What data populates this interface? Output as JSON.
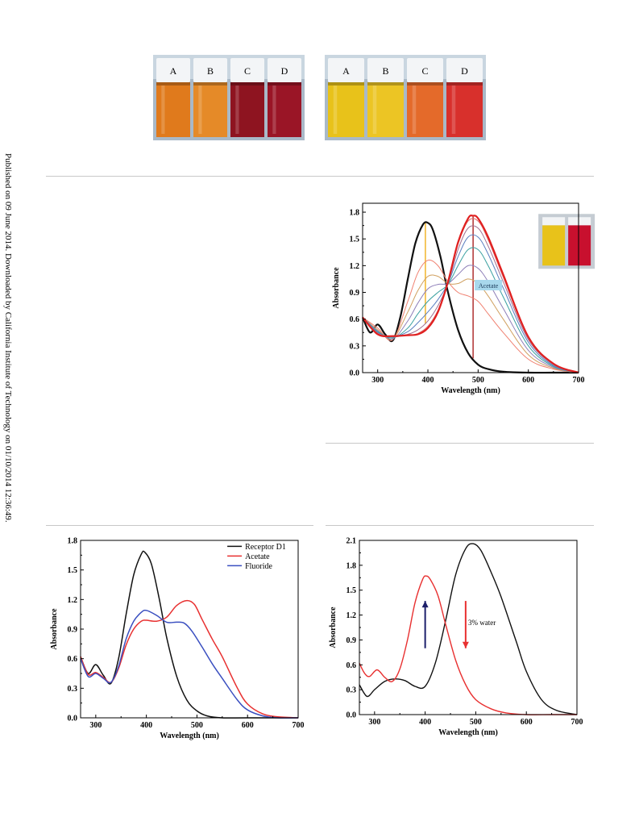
{
  "side_note": "Published on 09 June 2014. Downloaded by California Institute of Technology on 01/10/2014 12:36:49.",
  "vials": {
    "left": {
      "labels": [
        "A",
        "B",
        "C",
        "D"
      ],
      "colors": [
        "#e07a1c",
        "#e58a28",
        "#8e1420",
        "#9a1526"
      ]
    },
    "right": {
      "labels": [
        "A",
        "B",
        "C",
        "D"
      ],
      "colors": [
        "#e8c21a",
        "#ecc524",
        "#e46a2a",
        "#d8302c"
      ]
    }
  },
  "chart_data": [
    {
      "id": "titration",
      "type": "line",
      "xlabel": "Wavelength (nm)",
      "ylabel": "Absorbance",
      "xlim": [
        270,
        700
      ],
      "ylim": [
        0.0,
        1.9
      ],
      "xticks": [
        300,
        400,
        500,
        600,
        700
      ],
      "yticks": [
        0.0,
        0.3,
        0.6,
        0.9,
        1.2,
        1.5,
        1.8
      ],
      "annotations": [
        {
          "text": "Acetate"
        }
      ],
      "inset_colors": [
        "#e8c21a",
        "#c8102e"
      ],
      "marker_lines": [
        {
          "x": 395,
          "y_from": 0.55,
          "y_to": 1.68,
          "color": "#f2b42a"
        },
        {
          "x": 490,
          "y_from": 0.16,
          "y_to": 1.75,
          "color": "#b03030"
        }
      ],
      "series": [
        {
          "color": "#111111",
          "width": 2.2,
          "x": [
            270,
            285,
            300,
            315,
            330,
            345,
            360,
            375,
            390,
            400,
            410,
            425,
            440,
            460,
            480,
            500,
            520,
            550,
            600,
            650,
            700
          ],
          "y": [
            0.62,
            0.45,
            0.54,
            0.43,
            0.36,
            0.62,
            1.05,
            1.45,
            1.66,
            1.68,
            1.6,
            1.3,
            0.9,
            0.48,
            0.22,
            0.09,
            0.04,
            0.01,
            0.0,
            0.0,
            0.0
          ]
        },
        {
          "color": "#f08070",
          "width": 1,
          "x": [
            270,
            300,
            330,
            360,
            380,
            400,
            420,
            440,
            460,
            480,
            500,
            520,
            550,
            600,
            650,
            700
          ],
          "y": [
            0.62,
            0.5,
            0.37,
            0.8,
            1.12,
            1.26,
            1.2,
            1.02,
            0.9,
            0.86,
            0.8,
            0.66,
            0.45,
            0.15,
            0.04,
            0.0
          ]
        },
        {
          "color": "#d0a060",
          "width": 1,
          "x": [
            270,
            300,
            330,
            360,
            380,
            400,
            420,
            440,
            460,
            480,
            500,
            520,
            550,
            600,
            650,
            700
          ],
          "y": [
            0.62,
            0.48,
            0.38,
            0.68,
            0.92,
            1.08,
            1.08,
            1.0,
            1.0,
            1.05,
            1.0,
            0.86,
            0.6,
            0.2,
            0.05,
            0.0
          ]
        },
        {
          "color": "#8e7fb8",
          "width": 1,
          "x": [
            270,
            300,
            330,
            360,
            380,
            400,
            420,
            440,
            460,
            480,
            500,
            520,
            550,
            600,
            650,
            700
          ],
          "y": [
            0.62,
            0.47,
            0.38,
            0.58,
            0.78,
            0.94,
            0.99,
            1.0,
            1.1,
            1.2,
            1.17,
            1.02,
            0.72,
            0.25,
            0.06,
            0.0
          ]
        },
        {
          "color": "#3aa0a0",
          "width": 1,
          "x": [
            270,
            300,
            330,
            360,
            380,
            400,
            420,
            440,
            460,
            480,
            500,
            520,
            550,
            600,
            650,
            700
          ],
          "y": [
            0.62,
            0.46,
            0.39,
            0.5,
            0.66,
            0.8,
            0.9,
            0.99,
            1.2,
            1.38,
            1.38,
            1.2,
            0.85,
            0.3,
            0.07,
            0.0
          ]
        },
        {
          "color": "#5a7fc0",
          "width": 1,
          "x": [
            270,
            300,
            330,
            360,
            380,
            400,
            420,
            440,
            460,
            480,
            500,
            520,
            550,
            600,
            650,
            700
          ],
          "y": [
            0.62,
            0.45,
            0.4,
            0.46,
            0.56,
            0.68,
            0.82,
            1.0,
            1.3,
            1.52,
            1.52,
            1.33,
            0.95,
            0.34,
            0.08,
            0.0
          ]
        },
        {
          "color": "#a07090",
          "width": 1,
          "x": [
            270,
            300,
            330,
            360,
            380,
            400,
            420,
            440,
            460,
            480,
            500,
            520,
            550,
            600,
            650,
            700
          ],
          "y": [
            0.62,
            0.44,
            0.4,
            0.43,
            0.48,
            0.58,
            0.75,
            1.0,
            1.38,
            1.62,
            1.62,
            1.42,
            1.02,
            0.37,
            0.09,
            0.0
          ]
        },
        {
          "color": "#e06a6a",
          "width": 1,
          "x": [
            270,
            300,
            330,
            360,
            380,
            400,
            420,
            440,
            460,
            480,
            500,
            520,
            550,
            600,
            650,
            700
          ],
          "y": [
            0.62,
            0.44,
            0.41,
            0.42,
            0.44,
            0.52,
            0.7,
            1.02,
            1.44,
            1.7,
            1.7,
            1.49,
            1.07,
            0.39,
            0.1,
            0.0
          ]
        },
        {
          "color": "#e02020",
          "width": 2.2,
          "x": [
            270,
            300,
            330,
            360,
            380,
            400,
            420,
            440,
            460,
            480,
            490,
            500,
            520,
            550,
            600,
            650,
            700
          ],
          "y": [
            0.62,
            0.43,
            0.41,
            0.42,
            0.43,
            0.5,
            0.68,
            1.02,
            1.46,
            1.73,
            1.76,
            1.73,
            1.52,
            1.1,
            0.4,
            0.1,
            0.0
          ]
        }
      ]
    },
    {
      "id": "d1",
      "type": "line",
      "xlabel": "Wavelength (nm)",
      "ylabel": "Absorbance",
      "xlim": [
        270,
        700
      ],
      "ylim": [
        0.0,
        1.8
      ],
      "xticks": [
        300,
        400,
        500,
        600,
        700
      ],
      "yticks": [
        0.0,
        0.3,
        0.6,
        0.9,
        1.2,
        1.5,
        1.8
      ],
      "legend_position": "top-right",
      "series": [
        {
          "name": "Receptor D1",
          "color": "#111111",
          "width": 1.5,
          "x": [
            270,
            285,
            300,
            315,
            330,
            345,
            360,
            375,
            390,
            397,
            410,
            425,
            440,
            460,
            480,
            500,
            520,
            550,
            600,
            700
          ],
          "y": [
            0.62,
            0.45,
            0.54,
            0.43,
            0.35,
            0.6,
            1.05,
            1.45,
            1.66,
            1.68,
            1.56,
            1.22,
            0.82,
            0.42,
            0.18,
            0.07,
            0.02,
            0.0,
            0.0,
            0.0
          ]
        },
        {
          "name": "Acetate",
          "color": "#e83030",
          "width": 1.5,
          "x": [
            270,
            285,
            300,
            315,
            330,
            345,
            360,
            375,
            390,
            400,
            420,
            440,
            460,
            480,
            495,
            510,
            530,
            550,
            580,
            600,
            630,
            660,
            700
          ],
          "y": [
            0.62,
            0.44,
            0.46,
            0.41,
            0.36,
            0.5,
            0.74,
            0.9,
            0.98,
            0.99,
            0.98,
            1.02,
            1.14,
            1.19,
            1.15,
            1.0,
            0.8,
            0.62,
            0.3,
            0.14,
            0.04,
            0.01,
            0.0
          ]
        },
        {
          "name": "Fluoride",
          "color": "#3a4fc0",
          "width": 1.5,
          "x": [
            270,
            285,
            300,
            315,
            330,
            345,
            360,
            375,
            390,
            400,
            420,
            440,
            460,
            475,
            490,
            510,
            530,
            550,
            580,
            600,
            630,
            660,
            700
          ],
          "y": [
            0.6,
            0.42,
            0.45,
            0.4,
            0.36,
            0.52,
            0.8,
            0.98,
            1.07,
            1.09,
            1.04,
            0.97,
            0.97,
            0.96,
            0.88,
            0.72,
            0.55,
            0.4,
            0.18,
            0.08,
            0.02,
            0.0,
            0.0
          ]
        }
      ]
    },
    {
      "id": "water",
      "type": "line",
      "xlabel": "Wavelength (nm)",
      "ylabel": "Absorbance",
      "xlim": [
        270,
        700
      ],
      "ylim": [
        0.0,
        2.1
      ],
      "xticks": [
        300,
        400,
        500,
        600,
        700
      ],
      "yticks": [
        0.0,
        0.3,
        0.6,
        0.9,
        1.2,
        1.5,
        1.8,
        2.1
      ],
      "annotations": [
        {
          "text": "3% water"
        }
      ],
      "arrows": [
        {
          "x": 400,
          "y_from": 0.8,
          "y_to": 1.37,
          "color": "#1c1f6a"
        },
        {
          "x": 480,
          "y_from": 1.37,
          "y_to": 0.8,
          "color": "#e83030"
        }
      ],
      "series": [
        {
          "color": "#111111",
          "width": 1.4,
          "x": [
            270,
            285,
            300,
            320,
            340,
            360,
            380,
            400,
            420,
            440,
            460,
            480,
            495,
            510,
            530,
            550,
            580,
            600,
            630,
            660,
            700
          ],
          "y": [
            0.36,
            0.22,
            0.3,
            0.4,
            0.43,
            0.41,
            0.34,
            0.34,
            0.62,
            1.12,
            1.68,
            2.0,
            2.06,
            1.98,
            1.72,
            1.42,
            0.88,
            0.52,
            0.18,
            0.05,
            0.0
          ]
        },
        {
          "color": "#e83030",
          "width": 1.4,
          "x": [
            270,
            280,
            290,
            305,
            320,
            335,
            350,
            365,
            380,
            395,
            402,
            410,
            425,
            440,
            460,
            480,
            500,
            530,
            560,
            600,
            650,
            700
          ],
          "y": [
            0.62,
            0.5,
            0.46,
            0.54,
            0.45,
            0.4,
            0.55,
            0.9,
            1.35,
            1.63,
            1.67,
            1.63,
            1.44,
            1.1,
            0.66,
            0.36,
            0.18,
            0.07,
            0.02,
            0.0,
            0.0,
            0.0
          ]
        }
      ]
    }
  ]
}
